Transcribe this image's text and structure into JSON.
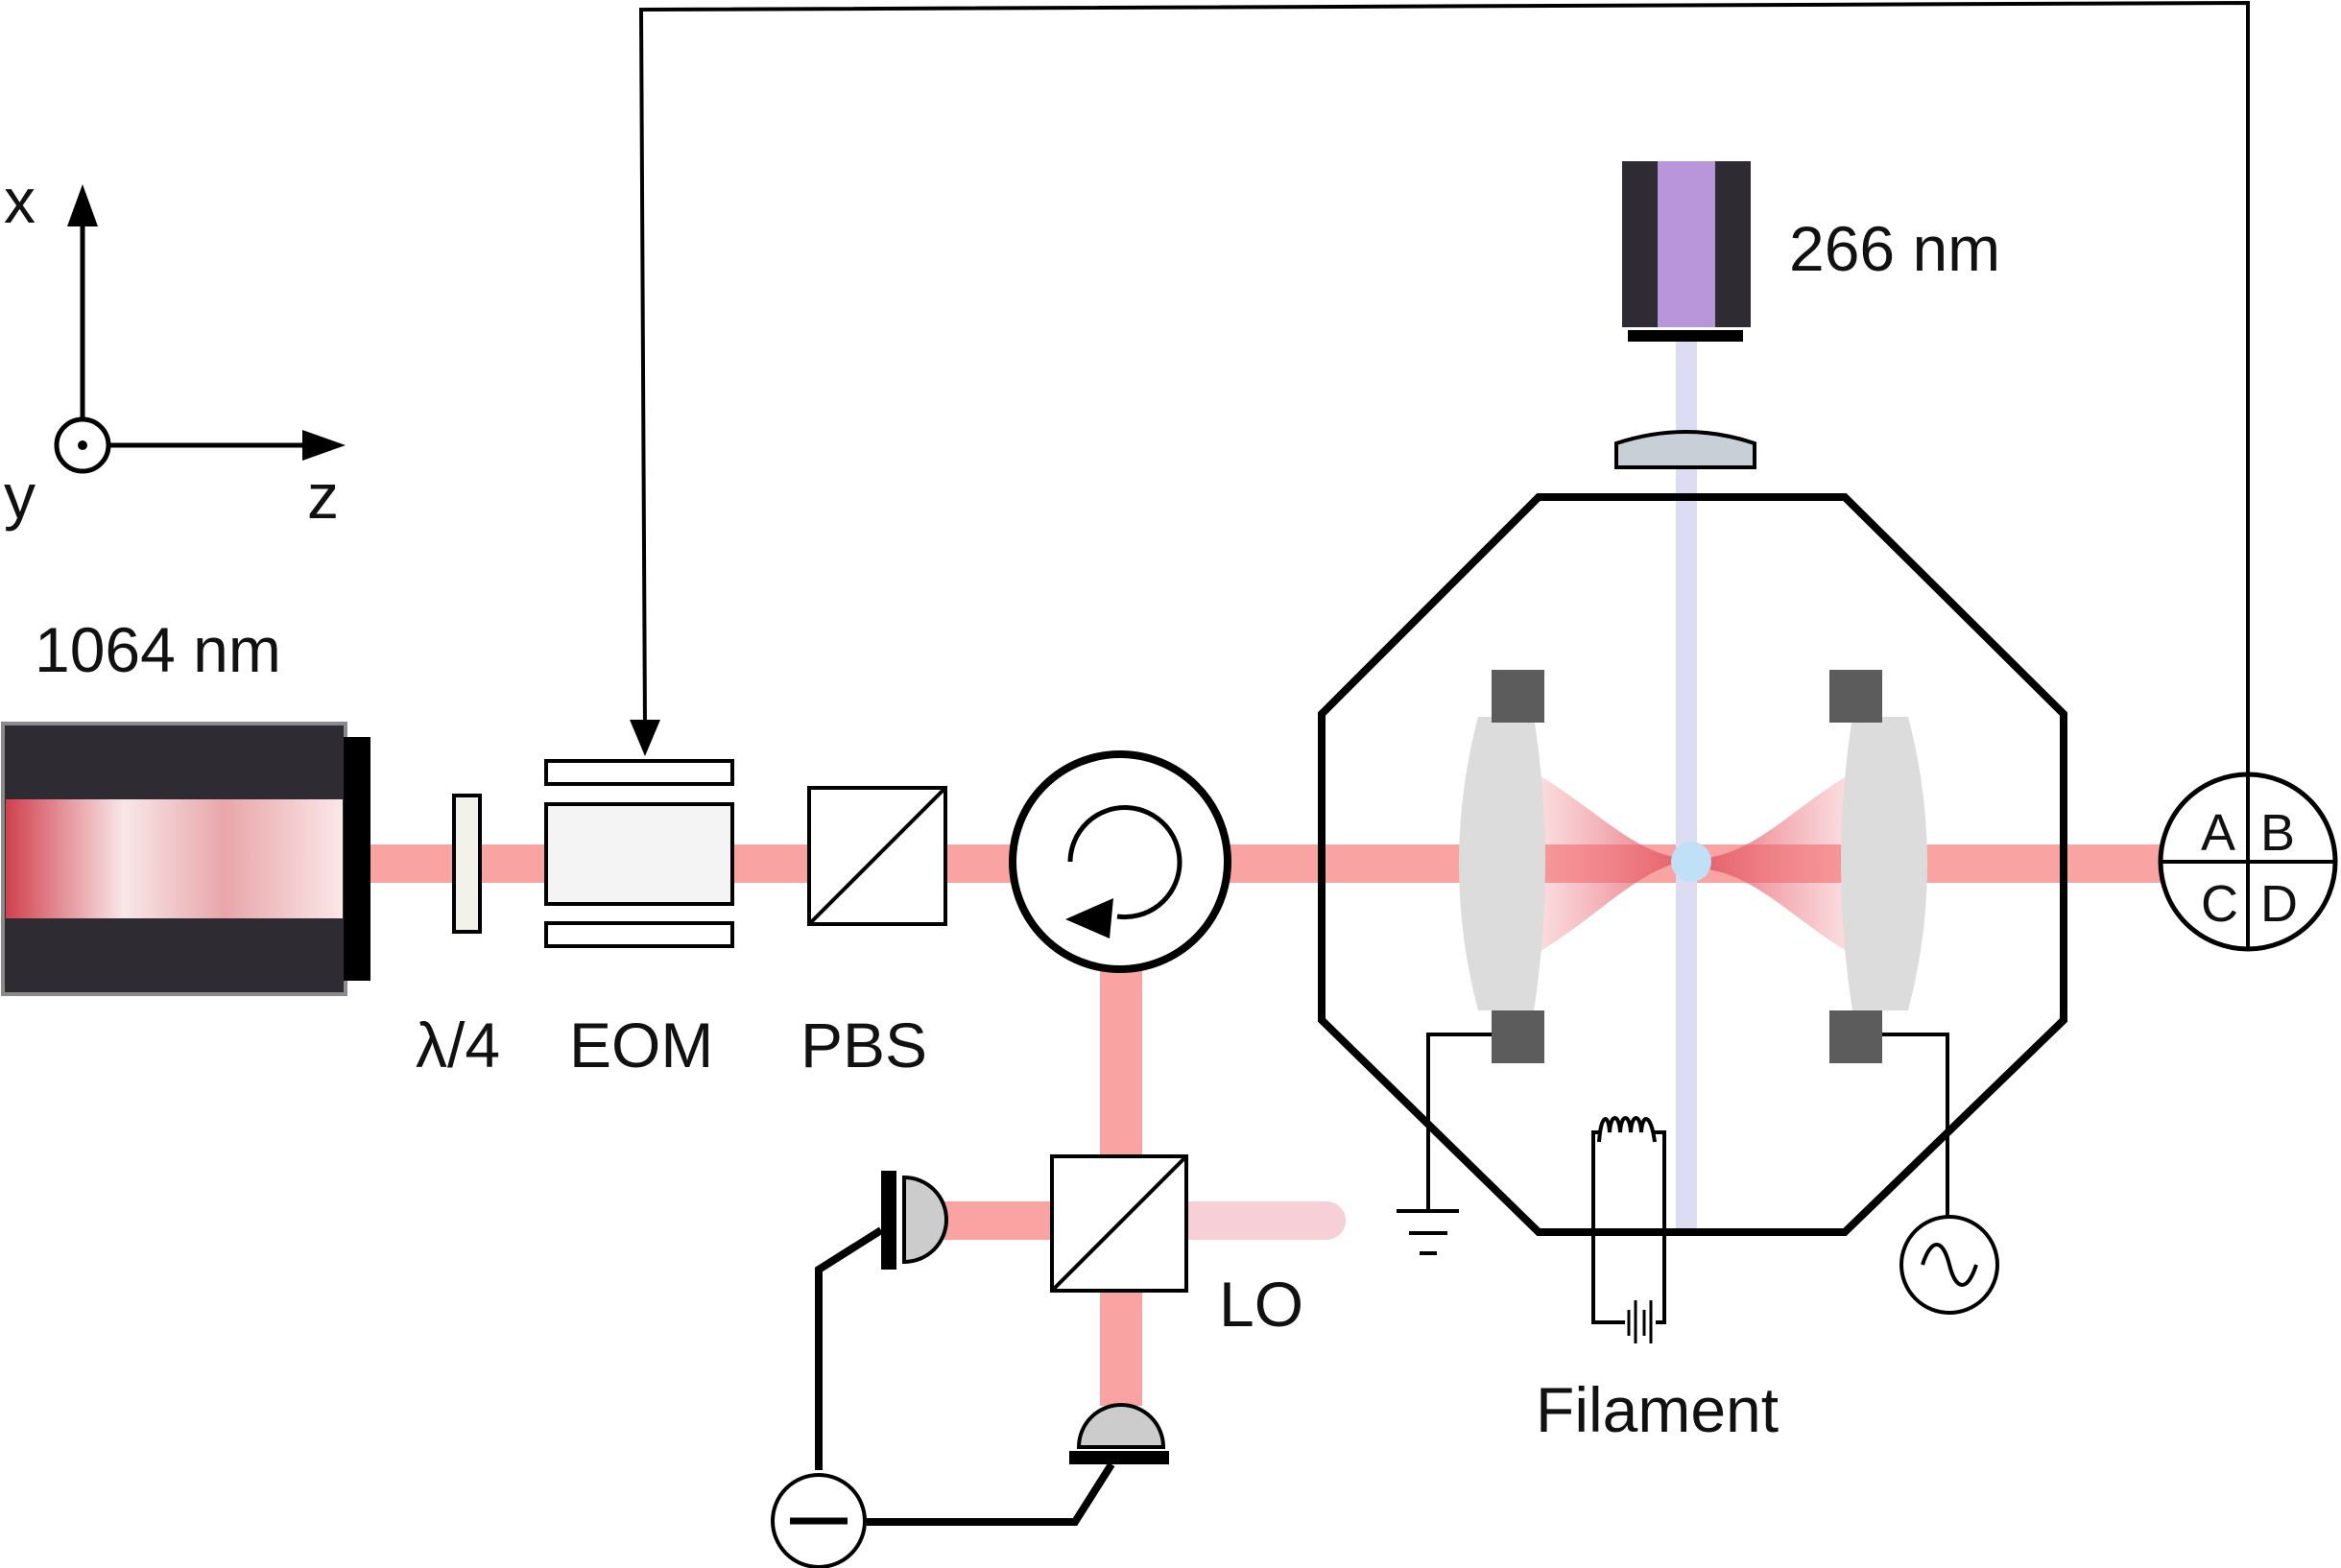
{
  "axes": {
    "x": "x",
    "y": "y",
    "z": "z"
  },
  "components": {
    "laser_1064": "1064 nm",
    "laser_266": "266 nm",
    "waveplate": "λ/4",
    "eom": "EOM",
    "pbs": "PBS",
    "local_oscillator": "LO",
    "filament": "Filament"
  },
  "quadrant_detector": {
    "a": "A",
    "b": "B",
    "c": "C",
    "d": "D"
  },
  "colors": {
    "beam_1064": "#f9a3a3",
    "beam_lo": "#f7cfd6",
    "beam_266": "#dcdcf3",
    "laser_body": "#2e2b33",
    "laser_266_core": "#b996d9",
    "electrode": "#5c5c5c",
    "lens": "#dddddd",
    "particle": "#bfe0f6"
  }
}
